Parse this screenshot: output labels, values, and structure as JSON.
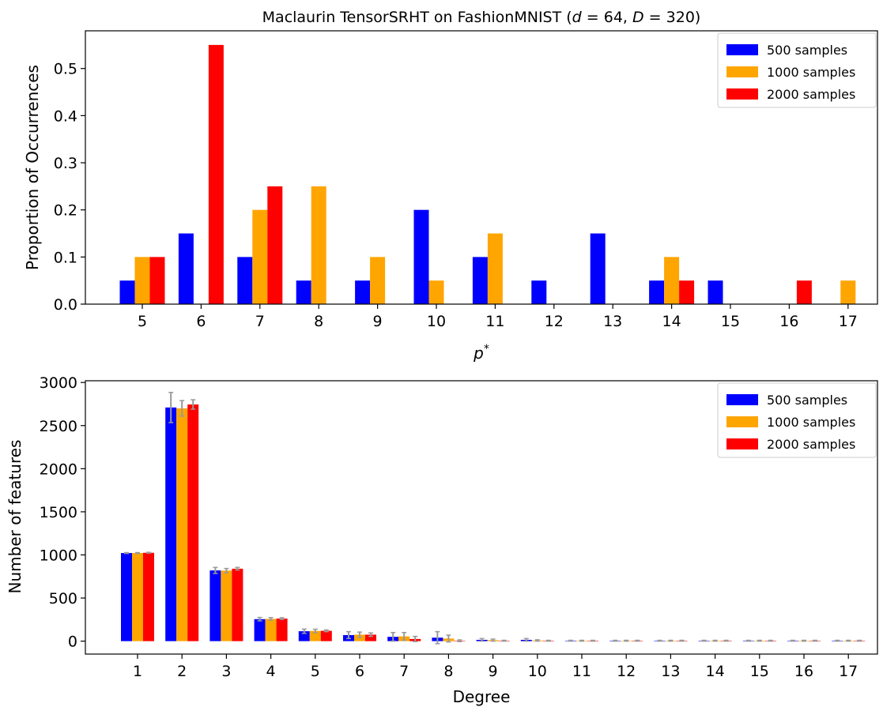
{
  "chart_data": [
    {
      "type": "bar",
      "title": "Maclaurin TensorSRHT on FashionMNIST (d = 64, D = 320)",
      "title_parts": {
        "prefix": "Maclaurin TensorSRHT on FashionMNIST (",
        "var1": "d",
        "eq1": " = 64, ",
        "var2": "D",
        "eq2": " = 320)"
      },
      "xlabel": "p",
      "xlabel_superscript": "*",
      "ylabel": "Proportion of Occurrences",
      "categories": [
        "5",
        "6",
        "7",
        "8",
        "9",
        "10",
        "11",
        "12",
        "13",
        "14",
        "15",
        "16",
        "17"
      ],
      "ylim": [
        0,
        0.58
      ],
      "yticks": [
        "0.0",
        "0.1",
        "0.2",
        "0.3",
        "0.4",
        "0.5"
      ],
      "legend_position": "top-right",
      "grid": false,
      "series": [
        {
          "name": "500 samples",
          "color": "#0000ff",
          "values": [
            0.05,
            0.15,
            0.1,
            0.05,
            0.05,
            0.2,
            0.1,
            0.05,
            0.15,
            0.05,
            0.05,
            0,
            0
          ]
        },
        {
          "name": "1000 samples",
          "color": "#ffa500",
          "values": [
            0.1,
            0,
            0.2,
            0.25,
            0.1,
            0.05,
            0.15,
            0,
            0,
            0.1,
            0,
            0,
            0.05
          ]
        },
        {
          "name": "2000 samples",
          "color": "#ff0000",
          "values": [
            0.1,
            0.55,
            0.25,
            0,
            0,
            0,
            0,
            0,
            0,
            0.05,
            0,
            0.05,
            0
          ]
        }
      ]
    },
    {
      "type": "bar",
      "title": "",
      "xlabel": "Degree",
      "ylabel": "Number of features",
      "categories": [
        "1",
        "2",
        "3",
        "4",
        "5",
        "6",
        "7",
        "8",
        "9",
        "10",
        "11",
        "12",
        "13",
        "14",
        "15",
        "16",
        "17"
      ],
      "ylim": [
        -150,
        3020
      ],
      "yticks": [
        "0",
        "500",
        "1000",
        "1500",
        "2000",
        "2500",
        "3000"
      ],
      "legend_position": "top-right",
      "grid": false,
      "error_bar_color": "#999999",
      "series": [
        {
          "name": "500 samples",
          "color": "#0000ff",
          "values": [
            1022,
            2710,
            820,
            255,
            115,
            70,
            50,
            40,
            15,
            15,
            5,
            5,
            5,
            5,
            5,
            5,
            5
          ],
          "errors": [
            5,
            175,
            35,
            20,
            25,
            40,
            50,
            70,
            15,
            15,
            5,
            5,
            5,
            5,
            5,
            5,
            5
          ]
        },
        {
          "name": "1000 samples",
          "color": "#ffa500",
          "values": [
            1022,
            2700,
            818,
            258,
            118,
            75,
            55,
            30,
            12,
            8,
            5,
            5,
            5,
            5,
            5,
            5,
            5
          ],
          "errors": [
            5,
            90,
            25,
            15,
            20,
            30,
            45,
            40,
            12,
            8,
            5,
            5,
            5,
            5,
            5,
            5,
            5
          ]
        },
        {
          "name": "2000 samples",
          "color": "#ff0000",
          "values": [
            1025,
            2745,
            840,
            262,
            120,
            75,
            25,
            5,
            5,
            5,
            5,
            5,
            5,
            5,
            5,
            5,
            5
          ],
          "errors": [
            5,
            55,
            15,
            10,
            10,
            20,
            30,
            10,
            5,
            5,
            5,
            5,
            5,
            5,
            5,
            5,
            5
          ]
        }
      ]
    }
  ]
}
